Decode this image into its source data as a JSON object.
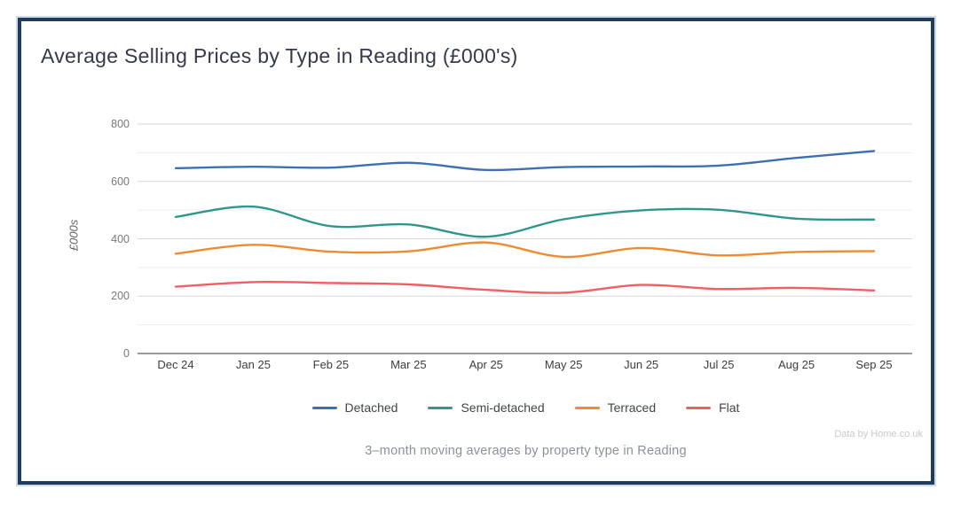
{
  "card": {
    "title": "Average Selling Prices by Type in Reading (£000's)",
    "subtitle": "3–month moving averages by property type in Reading",
    "attribution": "Data by Home.co.uk",
    "border_color": "#1e3c62"
  },
  "chart_data": {
    "type": "line",
    "title": "Average Selling Prices by Type in Reading (£000's)",
    "ylabel": "£000s",
    "xlabel": "",
    "categories": [
      "Dec 24",
      "Jan 25",
      "Feb 25",
      "Mar 25",
      "Apr 25",
      "May 25",
      "Jun 25",
      "Jul 25",
      "Aug 25",
      "Sep 25"
    ],
    "series": [
      {
        "name": "Detached",
        "color": "#3d6fb4",
        "values": [
          646,
          651,
          648,
          665,
          640,
          650,
          652,
          655,
          682,
          706
        ]
      },
      {
        "name": "Semi-detached",
        "color": "#2f968b",
        "values": [
          476,
          512,
          444,
          450,
          407,
          468,
          499,
          501,
          470,
          467
        ]
      },
      {
        "name": "Terraced",
        "color": "#ee8b31",
        "values": [
          348,
          379,
          355,
          356,
          387,
          337,
          368,
          342,
          354,
          357
        ]
      },
      {
        "name": "Flat",
        "color": "#ef5f63",
        "values": [
          233,
          249,
          246,
          241,
          222,
          212,
          239,
          225,
          229,
          220
        ]
      }
    ],
    "ylim": [
      0,
      800
    ],
    "ytick_label_step": 200,
    "ygrid_step": 100,
    "grid": true,
    "legend_position": "bottom",
    "line_smoothing": true
  }
}
